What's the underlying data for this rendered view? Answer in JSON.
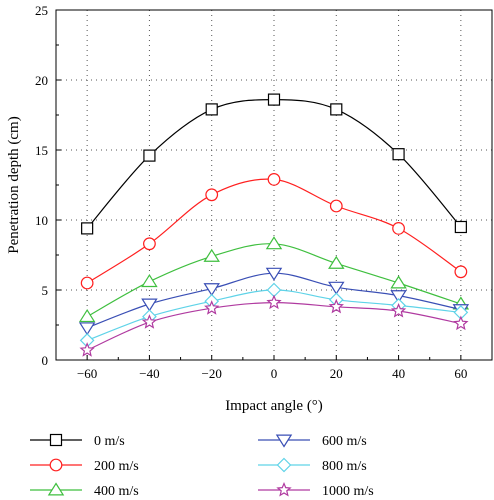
{
  "chart_data": {
    "type": "line",
    "x": [
      -60,
      -40,
      -20,
      0,
      20,
      40,
      60
    ],
    "xlabel": "Impact angle (°)",
    "ylabel": "Penetration depth (cm)",
    "xlim": [
      -70,
      70
    ],
    "ylim": [
      0,
      25
    ],
    "xticks": [
      -60,
      -40,
      -20,
      0,
      20,
      40,
      60
    ],
    "xtick_labels": [
      "−60",
      "−40",
      "−20",
      "0",
      "20",
      "40",
      "60"
    ],
    "yticks": [
      0,
      5,
      10,
      15,
      20,
      25
    ],
    "grid": true,
    "legend_position": "bottom",
    "series": [
      {
        "name": "0 m/s",
        "values": [
          9.4,
          14.6,
          17.9,
          18.6,
          17.9,
          14.7,
          9.5
        ],
        "color": "#000000",
        "marker": "square"
      },
      {
        "name": "200 m/s",
        "values": [
          5.5,
          8.3,
          11.8,
          12.9,
          11.0,
          9.4,
          6.3
        ],
        "color": "#ff2020",
        "marker": "circle"
      },
      {
        "name": "400 m/s",
        "values": [
          3.1,
          5.6,
          7.4,
          8.3,
          6.9,
          5.5,
          4.0
        ],
        "color": "#3fbf3f",
        "marker": "triangle-up"
      },
      {
        "name": "600 m/s",
        "values": [
          2.3,
          4.0,
          5.1,
          6.2,
          5.2,
          4.6,
          3.6
        ],
        "color": "#3a4fb5",
        "marker": "triangle-down"
      },
      {
        "name": "800 m/s",
        "values": [
          1.4,
          3.1,
          4.2,
          5.0,
          4.3,
          3.9,
          3.4
        ],
        "color": "#5fd3e8",
        "marker": "diamond"
      },
      {
        "name": "1000 m/s",
        "values": [
          0.7,
          2.7,
          3.7,
          4.1,
          3.8,
          3.5,
          2.6
        ],
        "color": "#b03aa0",
        "marker": "star"
      }
    ]
  }
}
